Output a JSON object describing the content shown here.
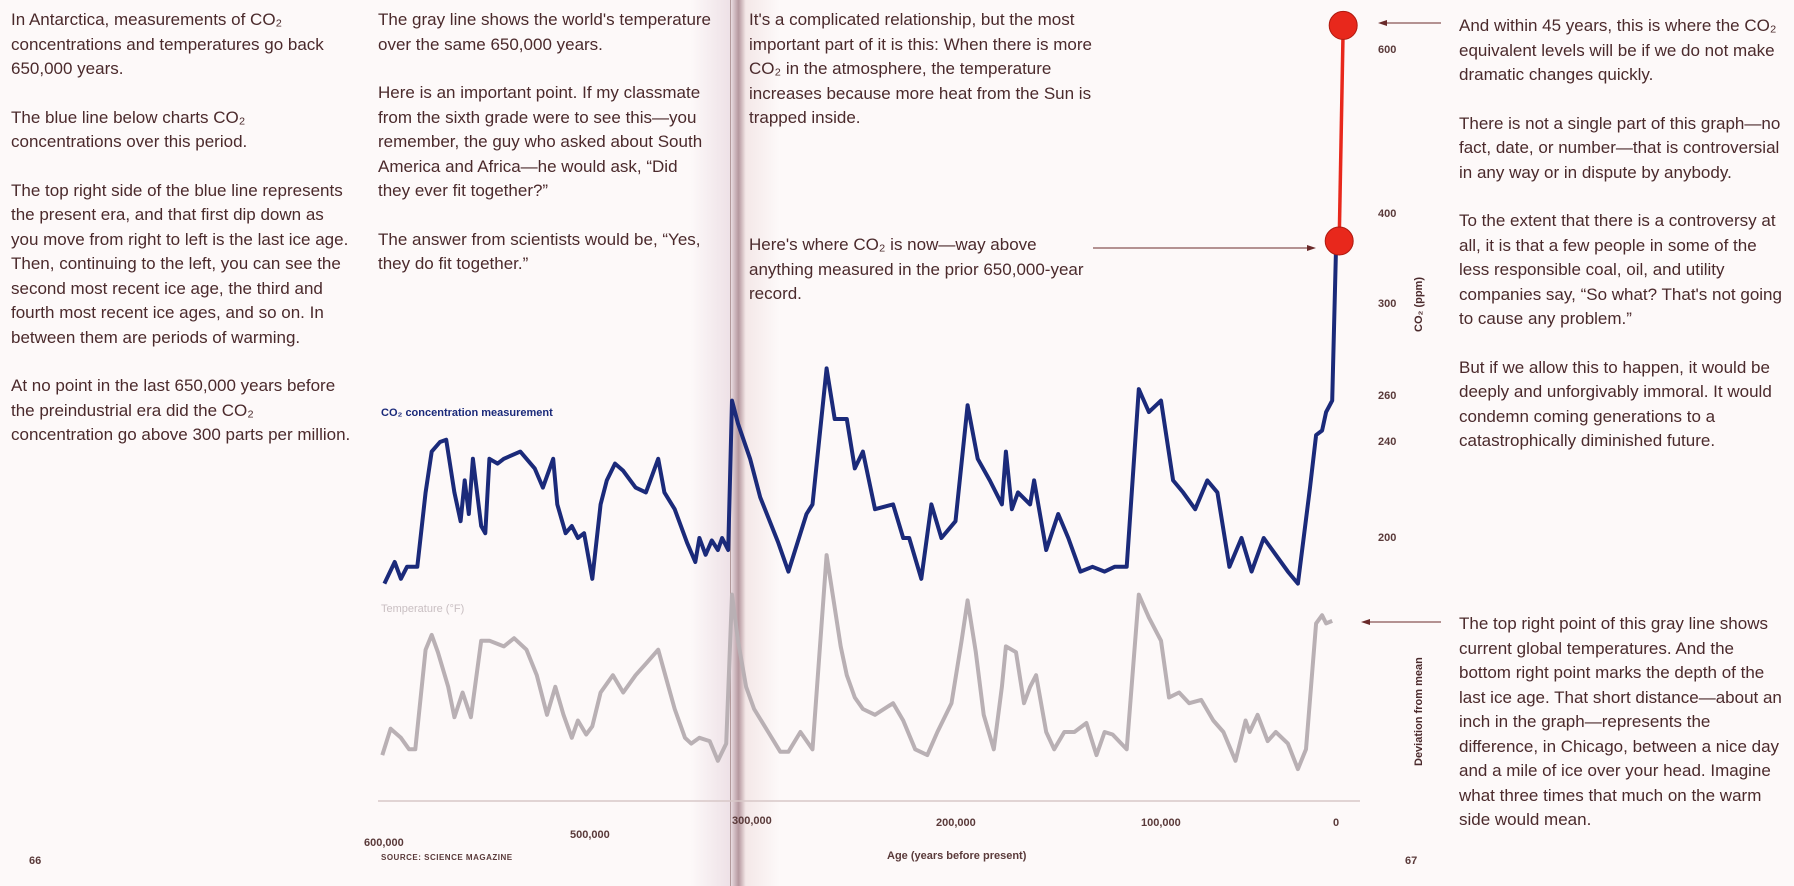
{
  "pages": {
    "left_number": "66",
    "right_number": "67"
  },
  "text": {
    "col1": [
      "In Antarctica, measurements of CO₂ concentrations and temperatures go back 650,000 years.",
      "The blue line below charts CO₂ concentrations over this period.",
      "The top right side of the blue line represents the present era, and that first dip down as you move from right to left is the last ice age. Then, continuing to the left, you can see the second most recent ice age, the third and fourth most recent ice ages, and so on. In between them are periods of warming.",
      "At no point in the last 650,000 years before the preindustrial era did the CO₂ concentration go above 300 parts per million."
    ],
    "col2": [
      "The gray line shows the world's temperature over the same 650,000 years.",
      "Here is an important point. If my classmate from the sixth grade were to see this—you remember, the guy who asked about South America and Africa—he would ask, “Did they ever fit together?”",
      "The answer from scientists would be, “Yes, they do fit together.”"
    ],
    "col3": "It's a complicated relationship, but the most important part of it is this: When there is more CO₂ in the atmosphere, the temperature increases because more heat from the Sun is trapped inside.",
    "col3_now": "Here's where CO₂ is now—way above anything measured in the prior 650,000-year record.",
    "col4": [
      "And within 45 years, this is where the CO₂ equivalent levels will be if we do not make dramatic changes quickly.",
      "There is not a single part of this graph—no fact, date, or number—that is controversial in any way or in dispute by anybody.",
      "To the extent that there is a controversy at all, it is that a few people in some of the less responsible coal, oil, and utility companies say, “So what? That's not going to cause any problem.”",
      "But if we allow this to happen, it would be deeply and unforgivably immoral. It would condemn coming generations to a catastrophically diminished future."
    ],
    "col4_temp": "The top right point of this gray line shows current global temperatures. And the bottom right point marks the depth of the last ice age. That short distance—about an inch in the graph—represents the difference, in Chicago, between a nice day and a mile of ice over your head. Imagine what three times that much on the warm side would mean."
  },
  "chart_data": {
    "type": "line",
    "source": "SOURCE: SCIENCE MAGAZINE",
    "xlabel": "Age (years before present)",
    "x_unit": "thousand years before present",
    "xticks": [
      "600,000",
      "500,000",
      "300,000",
      "200,000",
      "100,000",
      "0"
    ],
    "y1label": "CO₂ (ppm)",
    "y1ticks": [
      "600",
      "400",
      "300",
      "260",
      "240",
      "200"
    ],
    "y2label": "Deviation from mean",
    "colors": {
      "co2": "#1b2a7a",
      "temperature": "#b9b0b4",
      "projection": "#e8281c",
      "arrow": "#6a2a2a"
    },
    "series": [
      {
        "name": "CO₂ concentration measurement",
        "unit": "ppm",
        "age": [
          605,
          600,
          597,
          594,
          589,
          585,
          582,
          578,
          575,
          571,
          568,
          566,
          564,
          562,
          558,
          556,
          554,
          550,
          547,
          539,
          532,
          528,
          523,
          521,
          517,
          514,
          511,
          508,
          504,
          500,
          497,
          493,
          489,
          483,
          478,
          472,
          469,
          464,
          458,
          454,
          452,
          449,
          446,
          443,
          441,
          438,
          300,
          297,
          291,
          286,
          277,
          272,
          263,
          260,
          253,
          249,
          243,
          239,
          235,
          229,
          220,
          215,
          212,
          206,
          201,
          196,
          189,
          183,
          178,
          172,
          166,
          164,
          161,
          158,
          152,
          150,
          144,
          138,
          133,
          127,
          121,
          115,
          110,
          104,
          98,
          93,
          87,
          81,
          76,
          70,
          64,
          59,
          53,
          47,
          42,
          36,
          30,
          24,
          19,
          13,
          10,
          7,
          5,
          2,
          0
        ],
        "values": [
          181,
          190,
          183,
          188,
          188,
          219,
          236,
          240,
          241,
          219,
          207,
          224,
          210,
          233,
          205,
          202,
          233,
          231,
          233,
          236,
          229,
          221,
          233,
          214,
          202,
          205,
          200,
          202,
          183,
          214,
          224,
          231,
          228,
          221,
          219,
          233,
          219,
          212,
          198,
          190,
          200,
          193,
          199,
          195,
          200,
          195,
          258,
          248,
          233,
          217,
          198,
          186,
          210,
          214,
          272,
          250,
          250,
          229,
          236,
          212,
          214,
          200,
          200,
          183,
          214,
          200,
          207,
          256,
          233,
          224,
          214,
          236,
          212,
          219,
          214,
          224,
          195,
          210,
          200,
          186,
          188,
          186,
          188,
          188,
          263,
          253,
          258,
          224,
          219,
          212,
          224,
          219,
          188,
          200,
          186,
          200,
          193,
          186,
          181,
          221,
          243,
          245,
          253,
          258,
          370
        ]
      },
      {
        "name": "Temperature (°F)",
        "unit": "°F deviation from mean",
        "age": [
          606,
          602,
          597,
          593,
          590,
          585,
          582,
          579,
          574,
          571,
          567,
          563,
          558,
          554,
          547,
          542,
          536,
          531,
          526,
          522,
          518,
          514,
          511,
          507,
          504,
          500,
          494,
          489,
          483,
          478,
          472,
          467,
          464,
          459,
          456,
          452,
          447,
          443,
          439,
          300,
          297,
          293,
          289,
          282,
          276,
          272,
          266,
          260,
          253,
          246,
          243,
          239,
          235,
          229,
          220,
          215,
          209,
          203,
          198,
          191,
          186,
          183,
          179,
          175,
          170,
          166,
          164,
          159,
          155,
          152,
          149,
          144,
          140,
          135,
          130,
          124,
          119,
          115,
          111,
          104,
          98,
          93,
          87,
          83,
          78,
          73,
          67,
          61,
          56,
          50,
          45,
          43,
          39,
          34,
          30,
          24,
          19,
          15,
          10,
          7,
          5,
          2
        ],
        "values": [
          -12.6,
          -9.4,
          -10.5,
          -11.9,
          -11.9,
          0.2,
          2,
          -0.1,
          -4.3,
          -8,
          -5,
          -8,
          1.3,
          1.3,
          0.6,
          1.6,
          0.2,
          -2.9,
          -7.7,
          -4.3,
          -7.7,
          -10.5,
          -8.4,
          -10.1,
          -9.1,
          -5,
          -2.9,
          -5,
          -2.9,
          -1.5,
          0.2,
          -4.3,
          -7,
          -10.5,
          -11.2,
          -10.5,
          -10.9,
          -13.3,
          -11.2,
          6.9,
          1.3,
          -4.3,
          -7,
          -9.8,
          -12.2,
          -12.2,
          -9.8,
          -11.9,
          11.7,
          0.6,
          -2.9,
          -5.6,
          -7,
          -7.7,
          -6.3,
          -8.4,
          -11.9,
          -12.6,
          -9.8,
          -6.3,
          1.3,
          6.2,
          0,
          -7.7,
          -11.9,
          -4.3,
          0.6,
          -0.1,
          -6.3,
          -4.3,
          -2.9,
          -9.8,
          -11.9,
          -9.8,
          -9.8,
          -8.7,
          -12.6,
          -9.8,
          -10.1,
          -11.9,
          6.9,
          4.1,
          1.3,
          -5.6,
          -5,
          -6.3,
          -5.9,
          -8.4,
          -9.8,
          -13.3,
          -8.4,
          -9.8,
          -7.7,
          -10.9,
          -9.8,
          -11.2,
          -14.3,
          -11.9,
          3.4,
          4.4,
          3.4,
          3.7
        ]
      }
    ],
    "markers": [
      {
        "name": "now",
        "age": 0,
        "value": 370
      },
      {
        "name": "in 45 years",
        "age": 0,
        "value": 630
      }
    ]
  }
}
